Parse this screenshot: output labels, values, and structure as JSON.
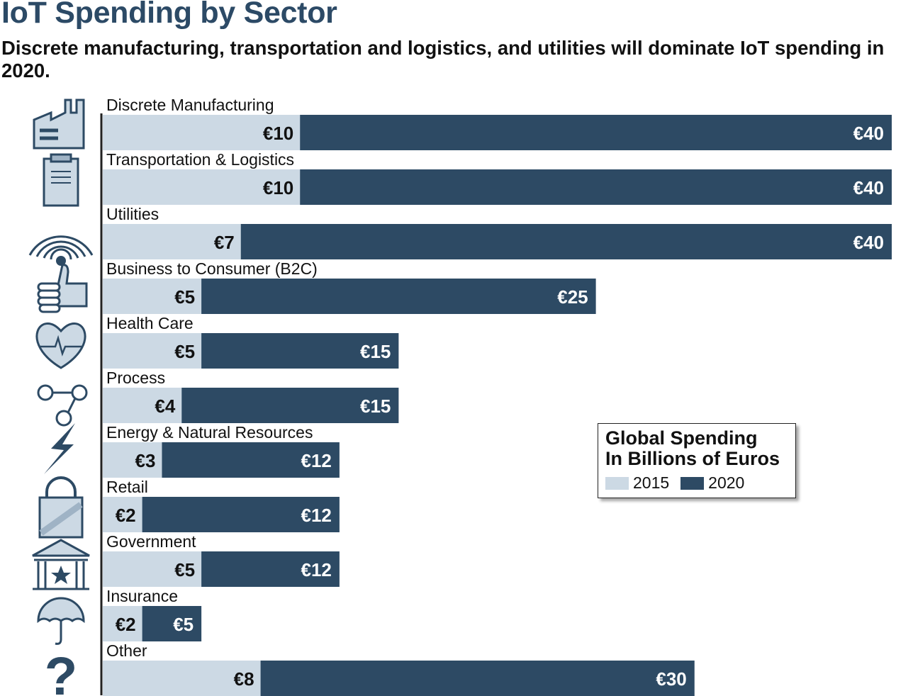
{
  "title": "IoT Spending by Sector",
  "subtitle": "Discrete manufacturing, transportation and logistics, and utilities will dominate IoT spending in 2020.",
  "legend": {
    "title_line1": "Global Spending",
    "title_line2": "In Billions of Euros",
    "label_2015": "2015",
    "label_2020": "2020"
  },
  "colors": {
    "y2015": "#ccd9e4",
    "y2020": "#2d4a64",
    "title": "#2c4a66"
  },
  "chart_data": {
    "type": "bar",
    "orientation": "horizontal",
    "stacked": true,
    "currency": "€",
    "categories": [
      "Discrete Manufacturing",
      "Transportation & Logistics",
      "Utilities",
      "Business to Consumer (B2C)",
      "Health Care",
      "Process",
      "Energy & Natural Resources",
      "Retail",
      "Government",
      "Insurance",
      "Other"
    ],
    "icons": [
      "factory-icon",
      "clipboard-icon",
      "wifi-signal-icon",
      "thumbs-up-icon",
      "heart-pulse-icon",
      "process-nodes-icon",
      "lightning-icon",
      "shopping-bag-icon",
      "government-building-icon",
      "umbrella-icon",
      "question-mark-icon"
    ],
    "series": [
      {
        "name": "2015",
        "values": [
          10,
          10,
          7,
          5,
          5,
          4,
          3,
          2,
          5,
          2,
          8
        ]
      },
      {
        "name": "2020",
        "values": [
          40,
          40,
          40,
          25,
          15,
          15,
          12,
          12,
          12,
          5,
          30
        ]
      }
    ],
    "labels_2015": [
      "€10",
      "€10",
      "€7",
      "€5",
      "€5",
      "€4",
      "€3",
      "€2",
      "€5",
      "€2",
      "€8"
    ],
    "labels_2020": [
      "€40",
      "€40",
      "€40",
      "€25",
      "€15",
      "€15",
      "€12",
      "€12",
      "€12",
      "€5",
      "€30"
    ],
    "legend_position": "right-middle"
  }
}
